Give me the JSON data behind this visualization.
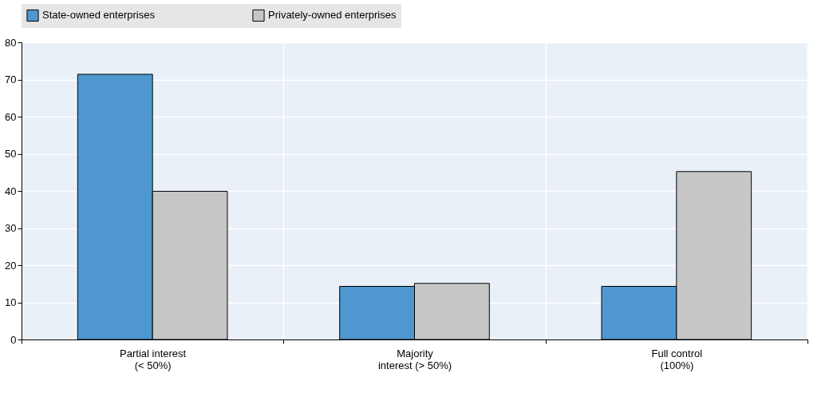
{
  "chart_data": {
    "type": "bar",
    "categories": [
      "Partial interest\n(< 50%)",
      "Majority\ninterest (> 50%)",
      "Full control\n(100%)"
    ],
    "series": [
      {
        "name": "State-owned enterprises",
        "color": "#4e98cf",
        "values": [
          71.4,
          14.3,
          14.3
        ]
      },
      {
        "name": "Privately-owned enterprises",
        "color": "#c6c6c6",
        "values": [
          39.9,
          15.1,
          45.2
        ]
      }
    ],
    "ylim": [
      0,
      80
    ],
    "yticks": [
      0,
      10,
      20,
      30,
      40,
      50,
      60,
      70,
      80
    ],
    "grid": true,
    "legend": "top"
  }
}
